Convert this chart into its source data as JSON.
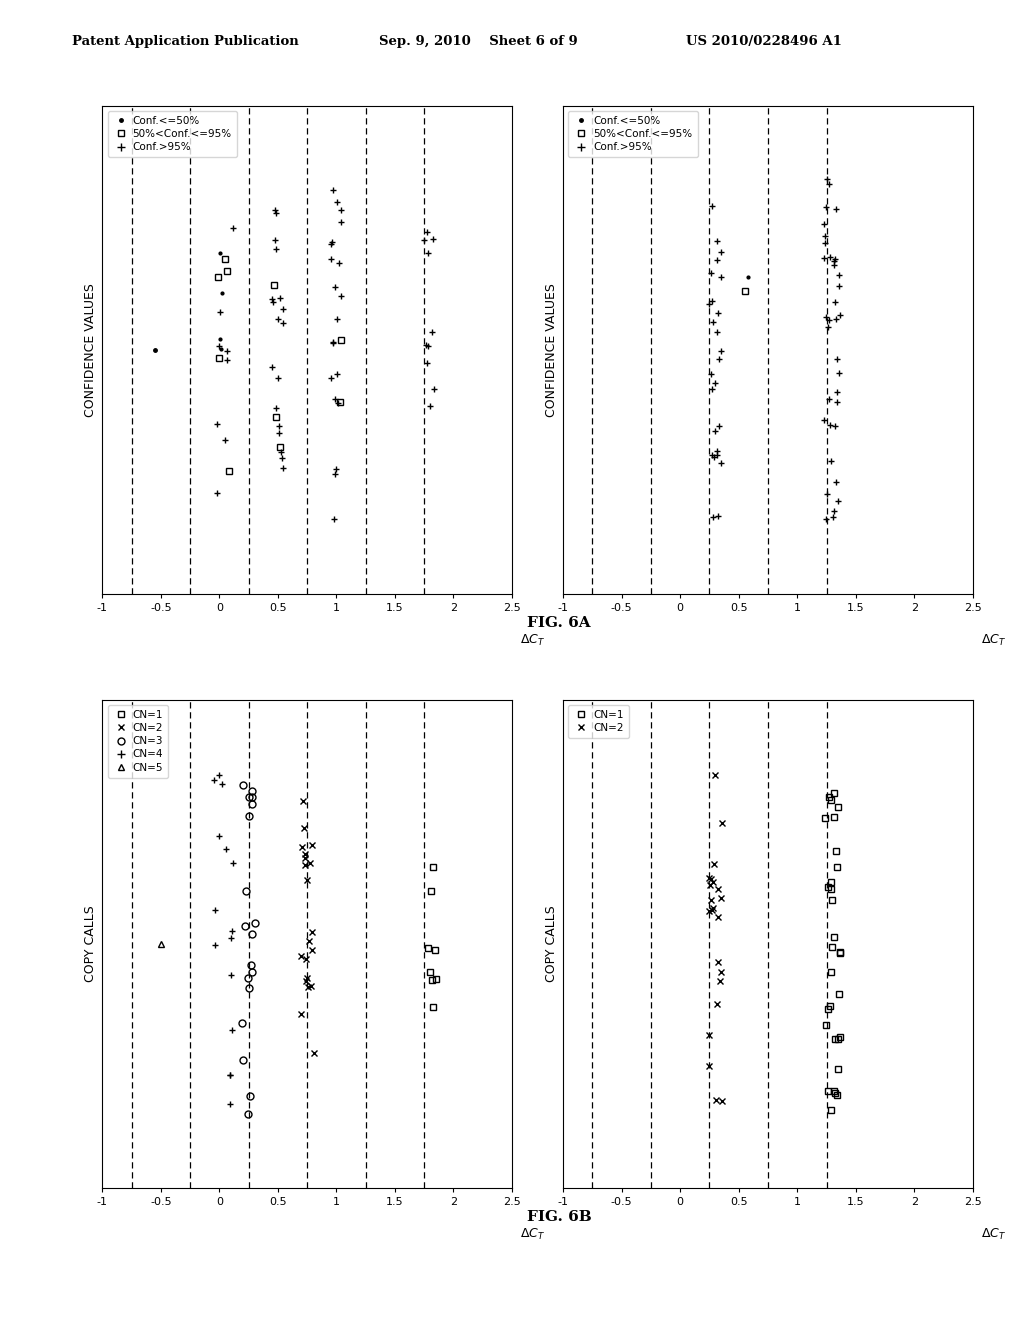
{
  "header_left": "Patent Application Publication",
  "header_mid": "Sep. 9, 2010    Sheet 6 of 9",
  "header_right": "US 2010/0228496 A1",
  "fig6a_label": "FIG. 6A",
  "fig6b_label": "FIG. 6B",
  "xlim": [
    -1,
    2.5
  ],
  "xticks": [
    -1.0,
    -0.5,
    0.0,
    0.5,
    1.0,
    1.5,
    2.0,
    2.5
  ],
  "dashed_x_6a": [
    -0.75,
    -0.25,
    0.25,
    0.75,
    1.25,
    1.75
  ],
  "dashed_x_6b": [
    -0.75,
    -0.25,
    0.25,
    0.75,
    1.25
  ],
  "background_color": "#ffffff",
  "conf_legend": [
    "Conf.<=50%",
    "50%<Conf.<=95%",
    "Conf.>95%"
  ],
  "copy_legend_6a": [
    "CN=1",
    "CN=2",
    "CN=3",
    "CN=4",
    "CN=5"
  ],
  "copy_legend_6b": [
    "CN=1",
    "CN=2"
  ]
}
